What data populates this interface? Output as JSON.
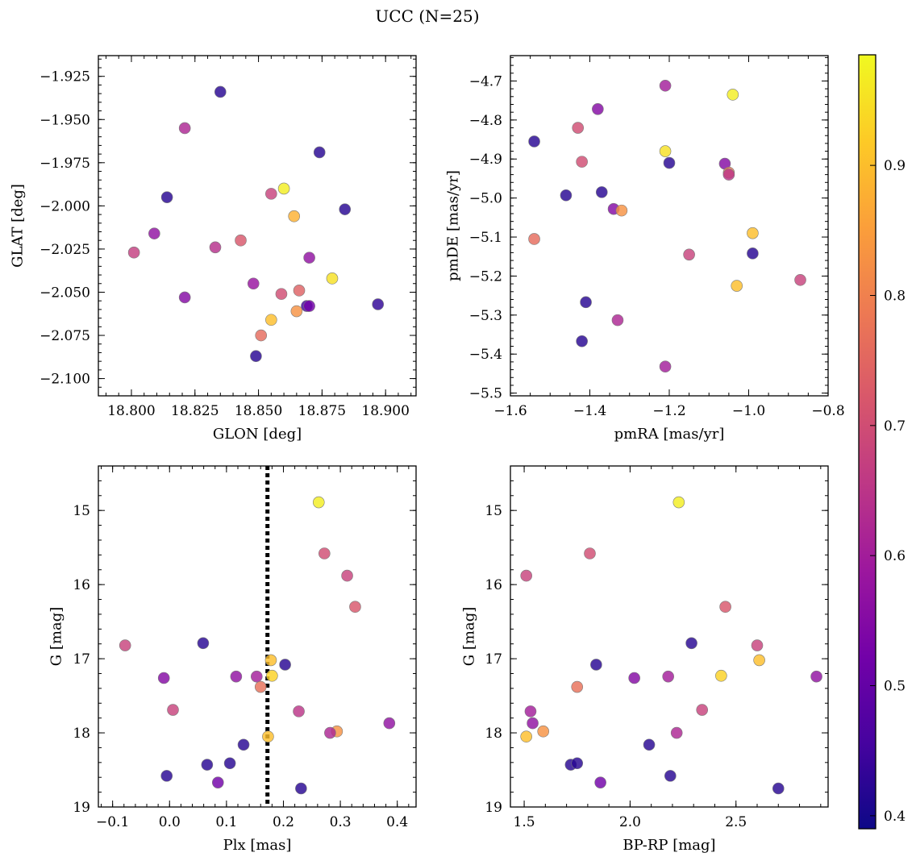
{
  "figure": {
    "title": "UCC (N=25)"
  },
  "colorbar": {
    "colors": [
      "#0d0887",
      "#46039f",
      "#7201a8",
      "#9c179e",
      "#bd3786",
      "#d8576b",
      "#ed7953",
      "#fb9f3a",
      "#fdca26",
      "#f0f921"
    ],
    "vmin": 0.39,
    "vmax": 0.985,
    "ticks": [
      0.4,
      0.5,
      0.6,
      0.7,
      0.8,
      0.9
    ],
    "tick_labels": [
      "0.4",
      "0.5",
      "0.6",
      "0.7",
      "0.8",
      "0.9"
    ]
  },
  "chart_data": [
    {
      "type": "scatter",
      "xlabel": "GLON [deg]",
      "ylabel": "GLAT [deg]",
      "xlim": [
        18.787,
        18.912
      ],
      "ylim": [
        -2.11,
        -1.913
      ],
      "xticks": [
        18.8,
        18.825,
        18.85,
        18.875,
        18.9
      ],
      "xtick_labels": [
        "18.800",
        "18.825",
        "18.850",
        "18.875",
        "18.900"
      ],
      "xminor": 0.005,
      "yticks": [
        -2.1,
        -2.075,
        -2.05,
        -2.025,
        -2.0,
        -1.975,
        -1.95,
        -1.925
      ],
      "ytick_labels": [
        "−2.100",
        "−2.075",
        "−2.050",
        "−2.025",
        "−2.000",
        "−1.975",
        "−1.950",
        "−1.925"
      ],
      "yminor": 0.005,
      "y_inverted": false,
      "points": [
        {
          "x": 18.835,
          "y": -1.934,
          "c": 0.42
        },
        {
          "x": 18.821,
          "y": -1.955,
          "c": 0.62
        },
        {
          "x": 18.874,
          "y": -1.969,
          "c": 0.42
        },
        {
          "x": 18.814,
          "y": -1.995,
          "c": 0.42
        },
        {
          "x": 18.86,
          "y": -1.99,
          "c": 0.97
        },
        {
          "x": 18.855,
          "y": -1.993,
          "c": 0.68
        },
        {
          "x": 18.864,
          "y": -2.006,
          "c": 0.88
        },
        {
          "x": 18.884,
          "y": -2.002,
          "c": 0.42
        },
        {
          "x": 18.809,
          "y": -2.016,
          "c": 0.57
        },
        {
          "x": 18.801,
          "y": -2.027,
          "c": 0.67
        },
        {
          "x": 18.833,
          "y": -2.024,
          "c": 0.64
        },
        {
          "x": 18.843,
          "y": -2.02,
          "c": 0.72
        },
        {
          "x": 18.87,
          "y": -2.03,
          "c": 0.57
        },
        {
          "x": 18.879,
          "y": -2.042,
          "c": 0.95
        },
        {
          "x": 18.848,
          "y": -2.045,
          "c": 0.58
        },
        {
          "x": 18.859,
          "y": -2.051,
          "c": 0.7
        },
        {
          "x": 18.866,
          "y": -2.049,
          "c": 0.74
        },
        {
          "x": 18.821,
          "y": -2.053,
          "c": 0.55
        },
        {
          "x": 18.869,
          "y": -2.058,
          "c": 0.45
        },
        {
          "x": 18.87,
          "y": -2.058,
          "c": 0.52
        },
        {
          "x": 18.865,
          "y": -2.061,
          "c": 0.83
        },
        {
          "x": 18.855,
          "y": -2.066,
          "c": 0.9
        },
        {
          "x": 18.897,
          "y": -2.057,
          "c": 0.43
        },
        {
          "x": 18.851,
          "y": -2.075,
          "c": 0.76
        },
        {
          "x": 18.849,
          "y": -2.087,
          "c": 0.42
        }
      ]
    },
    {
      "type": "scatter",
      "xlabel": "pmRA [mas/yr]",
      "ylabel": "pmDE [mas/yr]",
      "xlim": [
        -1.6,
        -0.8
      ],
      "ylim": [
        -5.507,
        -4.635
      ],
      "xticks": [
        -1.6,
        -1.4,
        -1.2,
        -1.0,
        -0.8
      ],
      "xtick_labels": [
        "−1.6",
        "−1.4",
        "−1.2",
        "−1.0",
        "−0.8"
      ],
      "xminor": 0.05,
      "yticks": [
        -5.5,
        -5.4,
        -5.3,
        -5.2,
        -5.1,
        -5.0,
        -4.9,
        -4.8,
        -4.7
      ],
      "ytick_labels": [
        "−5.5",
        "−5.4",
        "−5.3",
        "−5.2",
        "−5.1",
        "−5.0",
        "−4.9",
        "−4.8",
        "−4.7"
      ],
      "yminor": 0.02,
      "y_inverted": false,
      "points": [
        {
          "x": -1.21,
          "y": -4.712,
          "c": 0.6
        },
        {
          "x": -1.04,
          "y": -4.735,
          "c": 0.97
        },
        {
          "x": -1.38,
          "y": -4.772,
          "c": 0.55
        },
        {
          "x": -1.43,
          "y": -4.82,
          "c": 0.7
        },
        {
          "x": -1.54,
          "y": -4.855,
          "c": 0.42
        },
        {
          "x": -1.21,
          "y": -4.88,
          "c": 0.95
        },
        {
          "x": -1.42,
          "y": -4.907,
          "c": 0.7
        },
        {
          "x": -1.2,
          "y": -4.91,
          "c": 0.42
        },
        {
          "x": -1.06,
          "y": -4.912,
          "c": 0.55
        },
        {
          "x": -1.05,
          "y": -4.935,
          "c": 0.78
        },
        {
          "x": -1.05,
          "y": -4.94,
          "c": 0.65
        },
        {
          "x": -1.46,
          "y": -4.993,
          "c": 0.42
        },
        {
          "x": -1.37,
          "y": -4.985,
          "c": 0.42
        },
        {
          "x": -1.34,
          "y": -5.028,
          "c": 0.55
        },
        {
          "x": -1.32,
          "y": -5.032,
          "c": 0.83
        },
        {
          "x": -0.99,
          "y": -5.09,
          "c": 0.9
        },
        {
          "x": -1.54,
          "y": -5.105,
          "c": 0.76
        },
        {
          "x": -1.15,
          "y": -5.145,
          "c": 0.68
        },
        {
          "x": -0.99,
          "y": -5.142,
          "c": 0.42
        },
        {
          "x": -0.87,
          "y": -5.21,
          "c": 0.68
        },
        {
          "x": -1.03,
          "y": -5.225,
          "c": 0.9
        },
        {
          "x": -1.41,
          "y": -5.267,
          "c": 0.42
        },
        {
          "x": -1.33,
          "y": -5.313,
          "c": 0.62
        },
        {
          "x": -1.42,
          "y": -5.367,
          "c": 0.42
        },
        {
          "x": -1.21,
          "y": -5.432,
          "c": 0.6
        }
      ]
    },
    {
      "type": "scatter",
      "xlabel": "Plx [mas]",
      "ylabel": "G [mag]",
      "xlim": [
        -0.125,
        0.433
      ],
      "ylim": [
        19.0,
        14.4
      ],
      "xticks": [
        -0.1,
        0.0,
        0.1,
        0.2,
        0.3,
        0.4
      ],
      "xtick_labels": [
        "−0.1",
        "0.0",
        "0.1",
        "0.2",
        "0.3",
        "0.4"
      ],
      "xminor": 0.02,
      "yticks": [
        15,
        16,
        17,
        18,
        19
      ],
      "ytick_labels": [
        "15",
        "16",
        "17",
        "18",
        "19"
      ],
      "yminor": 0.2,
      "y_inverted": true,
      "vline": 0.172,
      "points": [
        {
          "x": 0.262,
          "y": 14.89,
          "c": 0.97
        },
        {
          "x": 0.272,
          "y": 15.58,
          "c": 0.7
        },
        {
          "x": 0.312,
          "y": 15.88,
          "c": 0.68
        },
        {
          "x": 0.326,
          "y": 16.3,
          "c": 0.72
        },
        {
          "x": -0.078,
          "y": 16.82,
          "c": 0.68
        },
        {
          "x": 0.059,
          "y": 16.79,
          "c": 0.42
        },
        {
          "x": 0.178,
          "y": 17.02,
          "c": 0.9
        },
        {
          "x": 0.203,
          "y": 17.08,
          "c": 0.42
        },
        {
          "x": -0.01,
          "y": 17.26,
          "c": 0.55
        },
        {
          "x": 0.117,
          "y": 17.24,
          "c": 0.57
        },
        {
          "x": 0.153,
          "y": 17.24,
          "c": 0.6
        },
        {
          "x": 0.18,
          "y": 17.23,
          "c": 0.93
        },
        {
          "x": 0.16,
          "y": 17.38,
          "c": 0.77
        },
        {
          "x": 0.006,
          "y": 17.69,
          "c": 0.68
        },
        {
          "x": 0.227,
          "y": 17.71,
          "c": 0.65
        },
        {
          "x": 0.386,
          "y": 17.87,
          "c": 0.57
        },
        {
          "x": 0.294,
          "y": 17.98,
          "c": 0.83
        },
        {
          "x": 0.282,
          "y": 18.0,
          "c": 0.62
        },
        {
          "x": 0.173,
          "y": 18.05,
          "c": 0.9
        },
        {
          "x": 0.13,
          "y": 18.16,
          "c": 0.42
        },
        {
          "x": -0.005,
          "y": 18.58,
          "c": 0.42
        },
        {
          "x": 0.066,
          "y": 18.43,
          "c": 0.42
        },
        {
          "x": 0.106,
          "y": 18.41,
          "c": 0.42
        },
        {
          "x": 0.085,
          "y": 18.67,
          "c": 0.52
        },
        {
          "x": 0.231,
          "y": 18.75,
          "c": 0.42
        }
      ]
    },
    {
      "type": "scatter",
      "xlabel": "BP-RP [mag]",
      "ylabel": "G [mag]",
      "xlim": [
        1.435,
        2.935
      ],
      "ylim": [
        19.0,
        14.4
      ],
      "xticks": [
        1.5,
        2.0,
        2.5
      ],
      "xtick_labels": [
        "1.5",
        "2.0",
        "2.5"
      ],
      "xminor": 0.1,
      "yticks": [
        15,
        16,
        17,
        18,
        19
      ],
      "ytick_labels": [
        "15",
        "16",
        "17",
        "18",
        "19"
      ],
      "yminor": 0.2,
      "y_inverted": true,
      "points": [
        {
          "x": 2.23,
          "y": 14.89,
          "c": 0.97
        },
        {
          "x": 1.81,
          "y": 15.58,
          "c": 0.7
        },
        {
          "x": 1.51,
          "y": 15.88,
          "c": 0.68
        },
        {
          "x": 2.45,
          "y": 16.3,
          "c": 0.72
        },
        {
          "x": 2.6,
          "y": 16.82,
          "c": 0.68
        },
        {
          "x": 2.29,
          "y": 16.79,
          "c": 0.42
        },
        {
          "x": 2.61,
          "y": 17.02,
          "c": 0.9
        },
        {
          "x": 1.84,
          "y": 17.08,
          "c": 0.42
        },
        {
          "x": 2.02,
          "y": 17.26,
          "c": 0.55
        },
        {
          "x": 2.18,
          "y": 17.24,
          "c": 0.6
        },
        {
          "x": 2.43,
          "y": 17.23,
          "c": 0.93
        },
        {
          "x": 2.88,
          "y": 17.24,
          "c": 0.57
        },
        {
          "x": 1.75,
          "y": 17.38,
          "c": 0.77
        },
        {
          "x": 1.53,
          "y": 17.71,
          "c": 0.6
        },
        {
          "x": 2.34,
          "y": 17.69,
          "c": 0.68
        },
        {
          "x": 1.54,
          "y": 17.87,
          "c": 0.57
        },
        {
          "x": 1.59,
          "y": 17.98,
          "c": 0.83
        },
        {
          "x": 2.22,
          "y": 18.0,
          "c": 0.62
        },
        {
          "x": 1.51,
          "y": 18.05,
          "c": 0.9
        },
        {
          "x": 2.09,
          "y": 18.16,
          "c": 0.42
        },
        {
          "x": 1.72,
          "y": 18.43,
          "c": 0.42
        },
        {
          "x": 1.75,
          "y": 18.41,
          "c": 0.42
        },
        {
          "x": 2.19,
          "y": 18.58,
          "c": 0.42
        },
        {
          "x": 1.86,
          "y": 18.67,
          "c": 0.52
        },
        {
          "x": 2.7,
          "y": 18.75,
          "c": 0.42
        }
      ]
    }
  ]
}
